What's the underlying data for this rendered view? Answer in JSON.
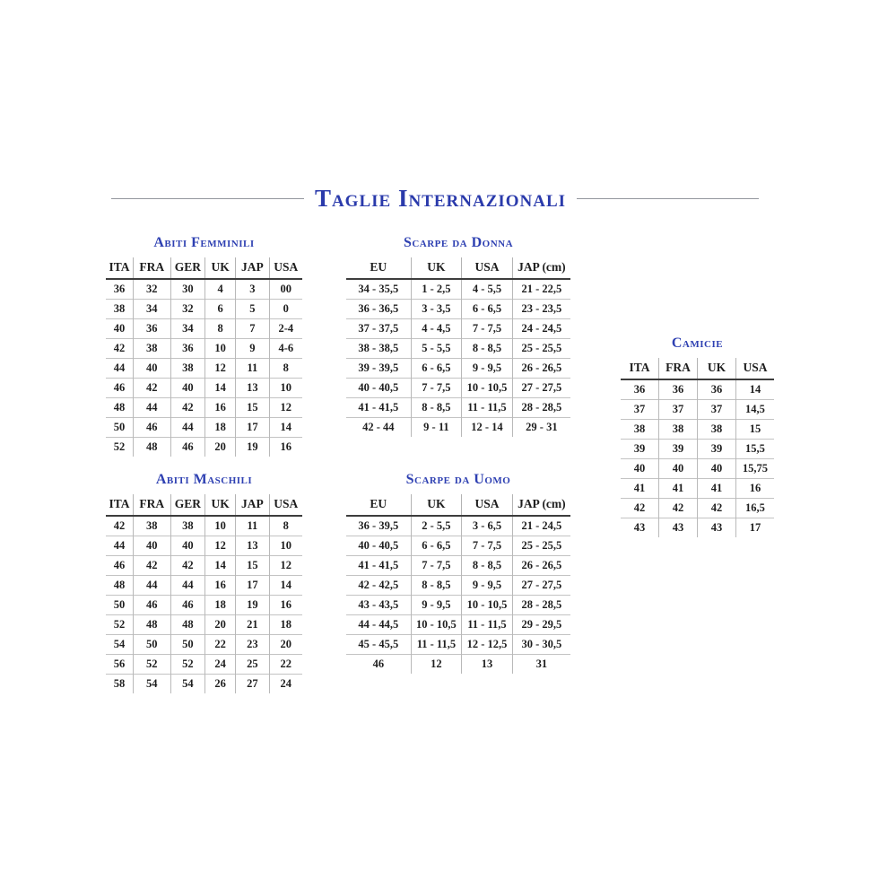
{
  "page_title": "Taglie Internazionali",
  "colors": {
    "background": "#ffffff",
    "title_blue": "#2a3aab",
    "section_title_blue": "#2e40b2",
    "text": "#1e1e1e",
    "heavy_rule": "#3d3d3d",
    "light_rule": "#b9b9b9",
    "title_side_rule": "#94979e"
  },
  "tables": {
    "abiti_femminili": {
      "title": "Abiti Femminili",
      "headers": [
        "ITA",
        "FRA",
        "GER",
        "UK",
        "JAP",
        "USA"
      ],
      "rows": [
        [
          "36",
          "32",
          "30",
          "4",
          "3",
          "00"
        ],
        [
          "38",
          "34",
          "32",
          "6",
          "5",
          "0"
        ],
        [
          "40",
          "36",
          "34",
          "8",
          "7",
          "2-4"
        ],
        [
          "42",
          "38",
          "36",
          "10",
          "9",
          "4-6"
        ],
        [
          "44",
          "40",
          "38",
          "12",
          "11",
          "8"
        ],
        [
          "46",
          "42",
          "40",
          "14",
          "13",
          "10"
        ],
        [
          "48",
          "44",
          "42",
          "16",
          "15",
          "12"
        ],
        [
          "50",
          "46",
          "44",
          "18",
          "17",
          "14"
        ],
        [
          "52",
          "48",
          "46",
          "20",
          "19",
          "16"
        ]
      ]
    },
    "scarpe_donna": {
      "title": "Scarpe da Donna",
      "headers": [
        "EU",
        "UK",
        "USA",
        "JAP (cm)"
      ],
      "rows": [
        [
          "34 - 35,5",
          "1 - 2,5",
          "4 - 5,5",
          "21 - 22,5"
        ],
        [
          "36 - 36,5",
          "3 - 3,5",
          "6 - 6,5",
          "23 - 23,5"
        ],
        [
          "37 - 37,5",
          "4 - 4,5",
          "7 - 7,5",
          "24 - 24,5"
        ],
        [
          "38 - 38,5",
          "5 - 5,5",
          "8 - 8,5",
          "25 - 25,5"
        ],
        [
          "39 - 39,5",
          "6 - 6,5",
          "9 - 9,5",
          "26 - 26,5"
        ],
        [
          "40 - 40,5",
          "7 - 7,5",
          "10 - 10,5",
          "27 - 27,5"
        ],
        [
          "41 - 41,5",
          "8 - 8,5",
          "11 - 11,5",
          "28 - 28,5"
        ],
        [
          "42 - 44",
          "9 - 11",
          "12 - 14",
          "29 - 31"
        ]
      ]
    },
    "camicie": {
      "title": "Camicie",
      "headers": [
        "ITA",
        "FRA",
        "UK",
        "USA"
      ],
      "rows": [
        [
          "36",
          "36",
          "36",
          "14"
        ],
        [
          "37",
          "37",
          "37",
          "14,5"
        ],
        [
          "38",
          "38",
          "38",
          "15"
        ],
        [
          "39",
          "39",
          "39",
          "15,5"
        ],
        [
          "40",
          "40",
          "40",
          "15,75"
        ],
        [
          "41",
          "41",
          "41",
          "16"
        ],
        [
          "42",
          "42",
          "42",
          "16,5"
        ],
        [
          "43",
          "43",
          "43",
          "17"
        ]
      ]
    },
    "abiti_maschili": {
      "title": "Abiti Maschili",
      "headers": [
        "ITA",
        "FRA",
        "GER",
        "UK",
        "JAP",
        "USA"
      ],
      "rows": [
        [
          "42",
          "38",
          "38",
          "10",
          "11",
          "8"
        ],
        [
          "44",
          "40",
          "40",
          "12",
          "13",
          "10"
        ],
        [
          "46",
          "42",
          "42",
          "14",
          "15",
          "12"
        ],
        [
          "48",
          "44",
          "44",
          "16",
          "17",
          "14"
        ],
        [
          "50",
          "46",
          "46",
          "18",
          "19",
          "16"
        ],
        [
          "52",
          "48",
          "48",
          "20",
          "21",
          "18"
        ],
        [
          "54",
          "50",
          "50",
          "22",
          "23",
          "20"
        ],
        [
          "56",
          "52",
          "52",
          "24",
          "25",
          "22"
        ],
        [
          "58",
          "54",
          "54",
          "26",
          "27",
          "24"
        ]
      ]
    },
    "scarpe_uomo": {
      "title": "Scarpe da Uomo",
      "headers": [
        "EU",
        "UK",
        "USA",
        "JAP (cm)"
      ],
      "rows": [
        [
          "36 - 39,5",
          "2 - 5,5",
          "3 - 6,5",
          "21 - 24,5"
        ],
        [
          "40 - 40,5",
          "6 - 6,5",
          "7 - 7,5",
          "25 - 25,5"
        ],
        [
          "41 - 41,5",
          "7 - 7,5",
          "8 - 8,5",
          "26 - 26,5"
        ],
        [
          "42 - 42,5",
          "8 - 8,5",
          "9 - 9,5",
          "27 - 27,5"
        ],
        [
          "43 - 43,5",
          "9 - 9,5",
          "10 - 10,5",
          "28 - 28,5"
        ],
        [
          "44 - 44,5",
          "10 - 10,5",
          "11 - 11,5",
          "29 - 29,5"
        ],
        [
          "45 - 45,5",
          "11 - 11,5",
          "12 - 12,5",
          "30 - 30,5"
        ],
        [
          "46",
          "12",
          "13",
          "31"
        ]
      ]
    }
  }
}
